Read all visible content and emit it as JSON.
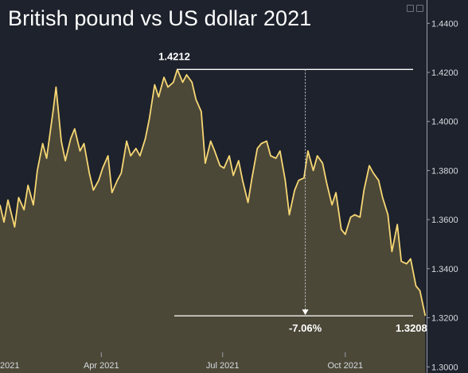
{
  "chart_data": {
    "type": "area",
    "title": "British pound vs US dollar 2021",
    "xlabel": "",
    "ylabel": "",
    "x_range": [
      "2021-01-15",
      "2021-12-01"
    ],
    "ylim": [
      1.2975,
      1.4495
    ],
    "grid": false,
    "legend": "none",
    "x_ticks": [
      {
        "date": "2021-01-01",
        "label": "2021"
      },
      {
        "date": "2021-04-01",
        "label": "Apr 2021"
      },
      {
        "date": "2021-07-01",
        "label": "Jul 2021"
      },
      {
        "date": "2021-10-01",
        "label": "Oct 2021"
      }
    ],
    "y_ticks": [
      {
        "value": 1.3,
        "label": "1.3000"
      },
      {
        "value": 1.32,
        "label": "1.3200"
      },
      {
        "value": 1.34,
        "label": "1.3400"
      },
      {
        "value": 1.36,
        "label": "1.3600"
      },
      {
        "value": 1.38,
        "label": "1.3800"
      },
      {
        "value": 1.4,
        "label": "1.4000"
      },
      {
        "value": 1.42,
        "label": "1.4200"
      },
      {
        "value": 1.44,
        "label": "1.4400"
      }
    ],
    "series": [
      {
        "color": "#f7d774",
        "fill": "#4c4838",
        "points": [
          [
            "2021-01-15",
            1.366
          ],
          [
            "2021-01-18",
            1.359
          ],
          [
            "2021-01-21",
            1.368
          ],
          [
            "2021-01-26",
            1.357
          ],
          [
            "2021-01-29",
            1.369
          ],
          [
            "2021-02-02",
            1.364
          ],
          [
            "2021-02-05",
            1.374
          ],
          [
            "2021-02-09",
            1.366
          ],
          [
            "2021-02-12",
            1.38
          ],
          [
            "2021-02-16",
            1.391
          ],
          [
            "2021-02-19",
            1.385
          ],
          [
            "2021-02-24",
            1.405
          ],
          [
            "2021-02-26",
            1.414
          ],
          [
            "2021-03-02",
            1.392
          ],
          [
            "2021-03-05",
            1.384
          ],
          [
            "2021-03-09",
            1.393
          ],
          [
            "2021-03-12",
            1.397
          ],
          [
            "2021-03-16",
            1.388
          ],
          [
            "2021-03-19",
            1.391
          ],
          [
            "2021-03-23",
            1.379
          ],
          [
            "2021-03-26",
            1.372
          ],
          [
            "2021-03-30",
            1.376
          ],
          [
            "2021-04-02",
            1.381
          ],
          [
            "2021-04-06",
            1.386
          ],
          [
            "2021-04-09",
            1.371
          ],
          [
            "2021-04-13",
            1.376
          ],
          [
            "2021-04-16",
            1.379
          ],
          [
            "2021-04-20",
            1.392
          ],
          [
            "2021-04-23",
            1.386
          ],
          [
            "2021-04-27",
            1.389
          ],
          [
            "2021-04-30",
            1.386
          ],
          [
            "2021-05-04",
            1.393
          ],
          [
            "2021-05-07",
            1.401
          ],
          [
            "2021-05-11",
            1.415
          ],
          [
            "2021-05-14",
            1.41
          ],
          [
            "2021-05-18",
            1.418
          ],
          [
            "2021-05-21",
            1.414
          ],
          [
            "2021-05-25",
            1.416
          ],
          [
            "2021-05-28",
            1.4212
          ],
          [
            "2021-06-01",
            1.416
          ],
          [
            "2021-06-04",
            1.419
          ],
          [
            "2021-06-08",
            1.416
          ],
          [
            "2021-06-11",
            1.409
          ],
          [
            "2021-06-15",
            1.404
          ],
          [
            "2021-06-18",
            1.383
          ],
          [
            "2021-06-22",
            1.392
          ],
          [
            "2021-06-25",
            1.388
          ],
          [
            "2021-06-29",
            1.382
          ],
          [
            "2021-07-02",
            1.381
          ],
          [
            "2021-07-06",
            1.386
          ],
          [
            "2021-07-09",
            1.378
          ],
          [
            "2021-07-13",
            1.384
          ],
          [
            "2021-07-16",
            1.376
          ],
          [
            "2021-07-20",
            1.367
          ],
          [
            "2021-07-23",
            1.377
          ],
          [
            "2021-07-27",
            1.389
          ],
          [
            "2021-07-30",
            1.391
          ],
          [
            "2021-08-03",
            1.392
          ],
          [
            "2021-08-06",
            1.386
          ],
          [
            "2021-08-10",
            1.385
          ],
          [
            "2021-08-13",
            1.388
          ],
          [
            "2021-08-17",
            1.376
          ],
          [
            "2021-08-20",
            1.362
          ],
          [
            "2021-08-24",
            1.372
          ],
          [
            "2021-08-27",
            1.376
          ],
          [
            "2021-08-31",
            1.377
          ],
          [
            "2021-09-03",
            1.388
          ],
          [
            "2021-09-07",
            1.38
          ],
          [
            "2021-09-10",
            1.386
          ],
          [
            "2021-09-14",
            1.383
          ],
          [
            "2021-09-17",
            1.375
          ],
          [
            "2021-09-21",
            1.366
          ],
          [
            "2021-09-24",
            1.371
          ],
          [
            "2021-09-28",
            1.356
          ],
          [
            "2021-10-01",
            1.354
          ],
          [
            "2021-10-05",
            1.361
          ],
          [
            "2021-10-08",
            1.362
          ],
          [
            "2021-10-12",
            1.361
          ],
          [
            "2021-10-15",
            1.372
          ],
          [
            "2021-10-19",
            1.382
          ],
          [
            "2021-10-22",
            1.379
          ],
          [
            "2021-10-26",
            1.376
          ],
          [
            "2021-10-29",
            1.369
          ],
          [
            "2021-11-02",
            1.362
          ],
          [
            "2021-11-05",
            1.347
          ],
          [
            "2021-11-09",
            1.358
          ],
          [
            "2021-11-12",
            1.343
          ],
          [
            "2021-11-16",
            1.342
          ],
          [
            "2021-11-19",
            1.344
          ],
          [
            "2021-11-23",
            1.333
          ],
          [
            "2021-11-26",
            1.331
          ],
          [
            "2021-11-30",
            1.3208
          ]
        ]
      }
    ],
    "annotations": {
      "high_label": "1.4212",
      "high_value": 1.4212,
      "high_date": "2021-05-28",
      "low_label": "1.3208",
      "low_value": 1.3208,
      "change_label": "-7.06%",
      "change_date": "2021-09-01"
    }
  }
}
